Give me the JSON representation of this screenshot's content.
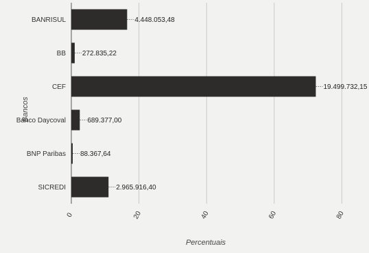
{
  "chart_data": {
    "type": "bar",
    "orientation": "horizontal",
    "title": "",
    "xlabel": "Percentuais",
    "ylabel": "Bancos",
    "xlim": [
      0,
      90
    ],
    "xticks": [
      0,
      20,
      40,
      60,
      80
    ],
    "xtick_labels": [
      "0",
      "20",
      "40",
      "60",
      "80"
    ],
    "grid": true,
    "categories": [
      "BANRISUL",
      "BB",
      "CEF",
      "Banco Daycoval",
      "BNP Paribas",
      "SICREDI"
    ],
    "values": [
      16.5,
      1.0,
      72.3,
      2.5,
      0.3,
      11.0
    ],
    "value_labels": [
      "4.448.053,48",
      "272.835,22",
      "19.499.732,15",
      "689.377,00",
      "88.367,64",
      "2.965.916,40"
    ],
    "bar_color": "#2e2b2b"
  }
}
